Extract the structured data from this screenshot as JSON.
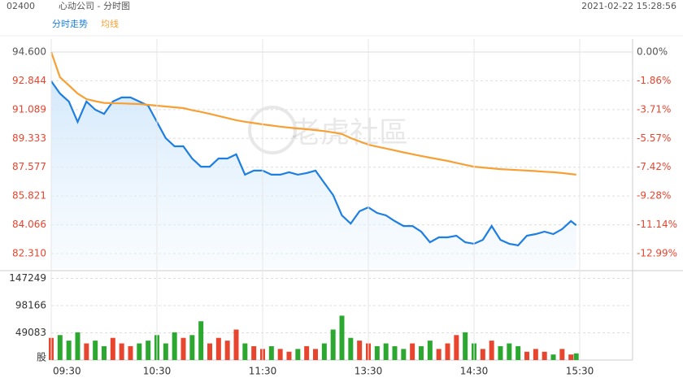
{
  "header": {
    "code": "02400",
    "name": "心动公司 - 分时图",
    "datetime": "2021-02-22 15:28:56",
    "watermark": "老虎社區"
  },
  "chart_data": [
    {
      "type": "line",
      "x": [
        "09:30",
        "09:35",
        "09:40",
        "09:45",
        "09:50",
        "09:55",
        "10:00",
        "10:05",
        "10:10",
        "10:15",
        "10:20",
        "10:25",
        "10:30",
        "10:35",
        "10:40",
        "10:45",
        "10:50",
        "10:55",
        "11:00",
        "11:05",
        "11:10",
        "11:15",
        "11:20",
        "11:25",
        "11:30",
        "11:35",
        "11:40",
        "11:45",
        "11:50",
        "11:55",
        "12:00",
        "13:05",
        "13:10",
        "13:15",
        "13:20",
        "13:25",
        "13:30",
        "13:35",
        "13:40",
        "13:45",
        "13:50",
        "13:55",
        "14:00",
        "14:05",
        "14:10",
        "14:15",
        "14:20",
        "14:25",
        "14:30",
        "14:35",
        "14:40",
        "14:45",
        "14:50",
        "14:55",
        "15:00",
        "15:05",
        "15:10",
        "15:15",
        "15:20",
        "15:25",
        "15:28"
      ],
      "series": [
        {
          "name": "分时走势",
          "color": "#1e7fe0",
          "values": [
            92.82,
            92.07,
            91.58,
            90.34,
            91.58,
            91.08,
            90.83,
            91.58,
            91.83,
            91.83,
            91.58,
            91.33,
            90.34,
            89.35,
            88.85,
            88.85,
            88.11,
            87.61,
            87.61,
            88.11,
            88.11,
            88.36,
            87.12,
            87.37,
            87.37,
            87.12,
            87.12,
            87.27,
            87.12,
            87.22,
            87.37,
            86.62,
            85.88,
            84.64,
            84.14,
            84.89,
            85.13,
            84.79,
            84.64,
            84.29,
            83.99,
            83.99,
            83.65,
            83.0,
            83.3,
            83.3,
            83.4,
            83.0,
            82.91,
            83.15,
            83.99,
            83.15,
            82.91,
            82.81,
            83.4,
            83.5,
            83.65,
            83.5,
            83.8,
            84.29,
            84.04
          ]
        },
        {
          "name": "均线",
          "color": "#f7a035",
          "values": [
            94.6,
            93.06,
            92.57,
            92.07,
            91.73,
            91.6,
            91.5,
            91.48,
            91.47,
            91.45,
            91.43,
            91.38,
            91.33,
            91.28,
            91.23,
            91.18,
            91.05,
            90.95,
            90.83,
            90.7,
            90.57,
            90.44,
            90.35,
            90.27,
            90.19,
            90.12,
            90.05,
            89.99,
            89.94,
            89.89,
            89.84,
            89.78,
            89.7,
            89.6,
            89.35,
            89.15,
            88.95,
            88.83,
            88.72,
            88.6,
            88.48,
            88.37,
            88.26,
            88.16,
            88.06,
            87.96,
            87.84,
            87.72,
            87.61,
            87.56,
            87.51,
            87.46,
            87.43,
            87.4,
            87.37,
            87.34,
            87.3,
            87.27,
            87.22,
            87.16,
            87.12
          ]
        }
      ],
      "ylim": [
        81.418,
        95.393
      ],
      "yticks": [
        {
          "value": 94.6,
          "label": "94.600"
        },
        92.844,
        91.089,
        89.333,
        87.577,
        85.821,
        84.066,
        {
          "value": 82.31,
          "label": "82.310"
        }
      ],
      "y2lim": [
        -13.934,
        0.838
      ],
      "y2ticks": [
        {
          "value": 0,
          "label": "0.00%"
        },
        {
          "value": -1.86,
          "label": "-1.86%"
        },
        {
          "value": -3.71,
          "label": "-3.71%"
        },
        {
          "value": -5.57,
          "label": "-5.57%"
        },
        {
          "value": -7.42,
          "label": "-7.42%"
        },
        {
          "value": -9.28,
          "label": "-9.28%"
        },
        {
          "value": -11.14,
          "label": "-11.14%"
        },
        {
          "value": -12.99,
          "label": "-12.99%"
        }
      ],
      "grid": true
    },
    {
      "type": "bar",
      "x": [
        "09:30",
        "09:35",
        "09:40",
        "09:45",
        "09:50",
        "09:55",
        "10:00",
        "10:05",
        "10:10",
        "10:15",
        "10:20",
        "10:25",
        "10:30",
        "10:35",
        "10:40",
        "10:45",
        "10:50",
        "10:55",
        "11:00",
        "11:05",
        "11:10",
        "11:15",
        "11:20",
        "11:25",
        "11:30",
        "11:35",
        "11:40",
        "11:45",
        "11:50",
        "11:55",
        "12:00",
        "13:05",
        "13:10",
        "13:15",
        "13:20",
        "13:25",
        "13:30",
        "13:35",
        "13:40",
        "13:45",
        "13:50",
        "13:55",
        "14:00",
        "14:05",
        "14:10",
        "14:15",
        "14:20",
        "14:25",
        "14:30",
        "14:35",
        "14:40",
        "14:45",
        "14:50",
        "14:55",
        "15:00",
        "15:05",
        "15:10",
        "15:15",
        "15:20",
        "15:25",
        "15:28"
      ],
      "values": [
        40000,
        45000,
        35000,
        50000,
        30000,
        35000,
        25000,
        40000,
        30000,
        25000,
        30000,
        35000,
        45000,
        30000,
        50000,
        40000,
        45000,
        70000,
        30000,
        40000,
        35000,
        55000,
        30000,
        25000,
        20000,
        25000,
        20000,
        15000,
        20000,
        25000,
        20000,
        30000,
        55000,
        80000,
        40000,
        35000,
        30000,
        25000,
        30000,
        25000,
        20000,
        30000,
        25000,
        35000,
        20000,
        30000,
        45000,
        50000,
        30000,
        20000,
        35000,
        25000,
        30000,
        25000,
        15000,
        20000,
        15000,
        10000,
        20000,
        10000,
        12000
      ],
      "up_color": "#e8452f",
      "down_color": "#2ca830",
      "ylim": [
        0,
        156800
      ],
      "yticks": [
        {
          "value": 0,
          "label": "股"
        },
        49083,
        98166,
        147249
      ],
      "xticks": [
        "09:30",
        "10:30",
        "11:30",
        "13:30",
        "14:30",
        "15:30"
      ]
    }
  ]
}
